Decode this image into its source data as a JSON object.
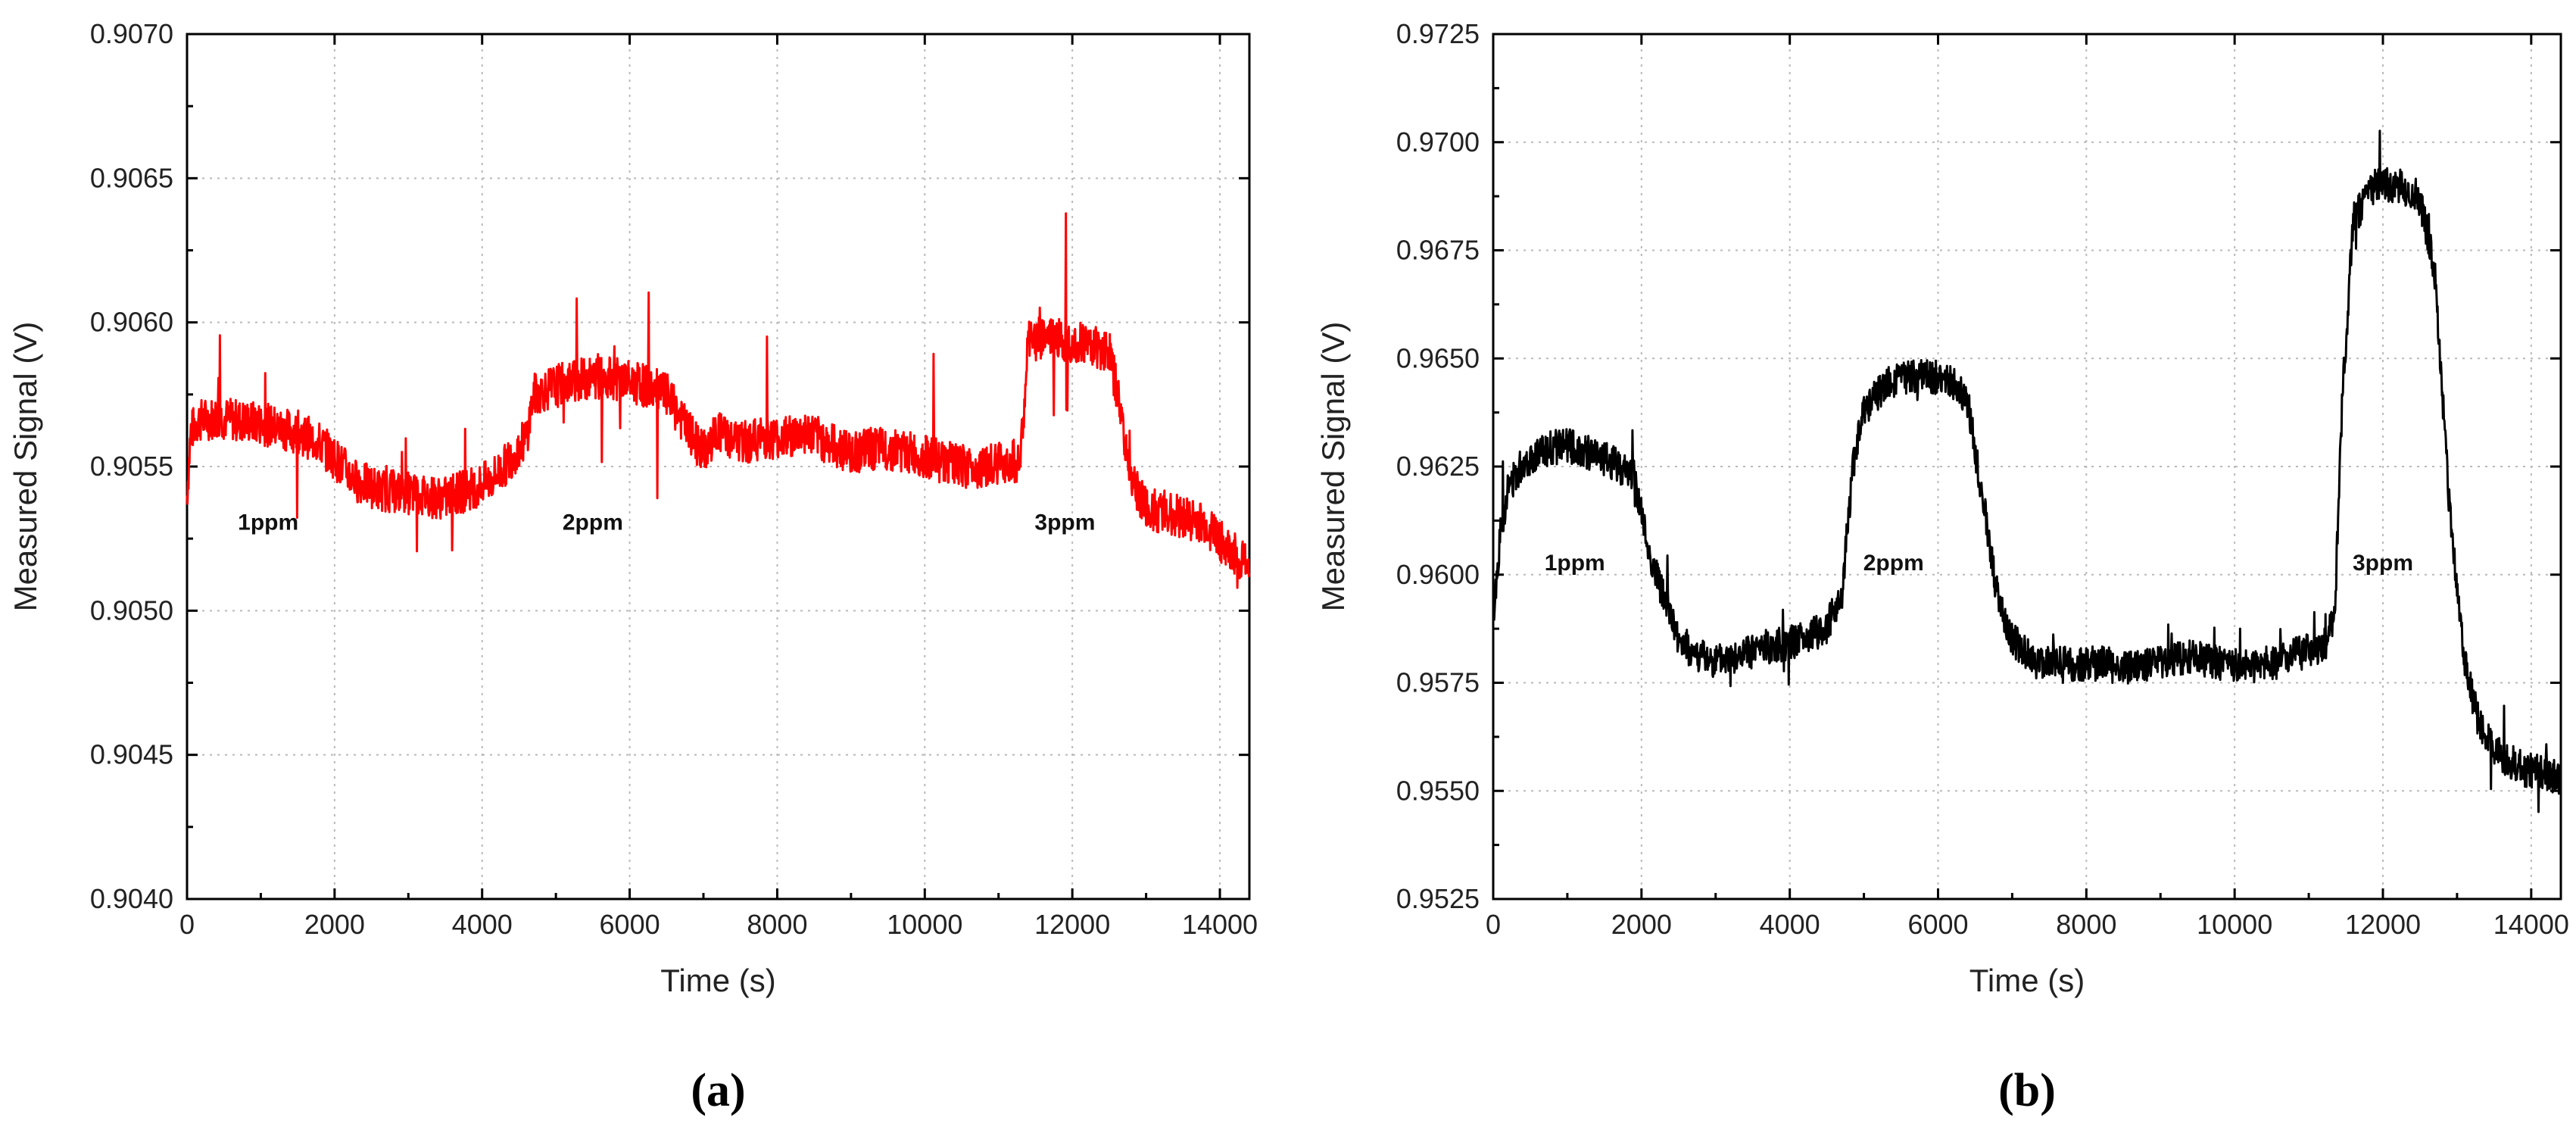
{
  "chart_data": [
    {
      "type": "line",
      "panel_label": "(a)",
      "xlabel": "Time (s)",
      "ylabel": "Measured Signal (V)",
      "xlim": [
        0,
        14400
      ],
      "ylim": [
        0.904,
        0.907
      ],
      "xticks": [
        0,
        2000,
        4000,
        6000,
        8000,
        10000,
        12000,
        14000
      ],
      "yticks": [
        "0.9040",
        "0.9045",
        "0.9050",
        "0.9055",
        "0.9060",
        "0.9065",
        "0.9070"
      ],
      "grid": true,
      "color": "#ff0000",
      "annotations": [
        {
          "text": "1ppm",
          "x": 1100,
          "y": 0.90528
        },
        {
          "text": "2ppm",
          "x": 5500,
          "y": 0.90528
        },
        {
          "text": "3ppm",
          "x": 11900,
          "y": 0.90528
        }
      ],
      "series": [
        {
          "x": [
            0,
            50,
            150,
            400,
            700,
            1000,
            1300,
            1500,
            1800,
            2000,
            2300,
            2600,
            2900,
            3200,
            3500,
            3800,
            4100,
            4300,
            4600,
            4700,
            5000,
            5300,
            5600,
            5900,
            6200,
            6500,
            6800,
            7000,
            7200,
            7500,
            7800,
            8100,
            8400,
            8700,
            9000,
            9300,
            9600,
            9900,
            10200,
            10500,
            10800,
            11100,
            11300,
            11400,
            11600,
            11900,
            12200,
            12500,
            12650,
            12800,
            13000,
            13300,
            13600,
            13900,
            14100,
            14400
          ],
          "values": [
            0.9054,
            0.90562,
            0.90566,
            0.90567,
            0.90566,
            0.90565,
            0.90563,
            0.90562,
            0.90558,
            0.90553,
            0.90545,
            0.90542,
            0.90541,
            0.9054,
            0.90539,
            0.90542,
            0.90545,
            0.9055,
            0.9056,
            0.90575,
            0.90578,
            0.9058,
            0.90581,
            0.9058,
            0.90578,
            0.90575,
            0.90562,
            0.90555,
            0.90562,
            0.90558,
            0.9056,
            0.9056,
            0.90562,
            0.90558,
            0.90555,
            0.90556,
            0.90556,
            0.90554,
            0.90552,
            0.9055,
            0.9055,
            0.90552,
            0.90552,
            0.90593,
            0.90595,
            0.90594,
            0.90593,
            0.9059,
            0.9057,
            0.90545,
            0.90535,
            0.90534,
            0.90532,
            0.90528,
            0.90521,
            0.90516
          ]
        }
      ]
    },
    {
      "type": "line",
      "panel_label": "(b)",
      "xlabel": "Time (s)",
      "ylabel": "Measured Signal (V)",
      "xlim": [
        0,
        14400
      ],
      "ylim": [
        0.9525,
        0.9725
      ],
      "xticks": [
        0,
        2000,
        4000,
        6000,
        8000,
        10000,
        12000,
        14000
      ],
      "yticks": [
        "0.9525",
        "0.9550",
        "0.9575",
        "0.9600",
        "0.9625",
        "0.9650",
        "0.9675",
        "0.9700",
        "0.9725"
      ],
      "grid": true,
      "color": "#000000",
      "annotations": [
        {
          "text": "1ppm",
          "x": 1100,
          "y": 0.9601
        },
        {
          "text": "2ppm",
          "x": 5400,
          "y": 0.9601
        },
        {
          "text": "3ppm",
          "x": 12000,
          "y": 0.9601
        }
      ],
      "series": [
        {
          "x": [
            0,
            100,
            200,
            400,
            700,
            1000,
            1300,
            1600,
            1900,
            2100,
            2300,
            2500,
            2700,
            3000,
            3300,
            3600,
            3900,
            4200,
            4500,
            4700,
            4850,
            5000,
            5300,
            5600,
            5900,
            6200,
            6400,
            6600,
            6800,
            7000,
            7300,
            7600,
            7900,
            8200,
            8500,
            8800,
            9100,
            9400,
            9700,
            10000,
            10300,
            10600,
            10900,
            11200,
            11350,
            11450,
            11600,
            11900,
            12200,
            12500,
            12700,
            12900,
            13100,
            13300,
            13600,
            13900,
            14200,
            14400
          ],
          "values": [
            0.959,
            0.961,
            0.962,
            0.9626,
            0.9629,
            0.963,
            0.9628,
            0.9626,
            0.9623,
            0.9605,
            0.9595,
            0.9585,
            0.9582,
            0.958,
            0.9581,
            0.9583,
            0.9584,
            0.9585,
            0.9588,
            0.9595,
            0.9625,
            0.9638,
            0.9644,
            0.9646,
            0.9646,
            0.9644,
            0.964,
            0.9618,
            0.9595,
            0.9585,
            0.958,
            0.958,
            0.9579,
            0.958,
            0.9578,
            0.9579,
            0.958,
            0.9581,
            0.958,
            0.9579,
            0.9579,
            0.958,
            0.9582,
            0.9583,
            0.959,
            0.964,
            0.9682,
            0.969,
            0.969,
            0.9687,
            0.967,
            0.9615,
            0.958,
            0.9565,
            0.9558,
            0.9555,
            0.9554,
            0.9553
          ]
        }
      ]
    }
  ]
}
